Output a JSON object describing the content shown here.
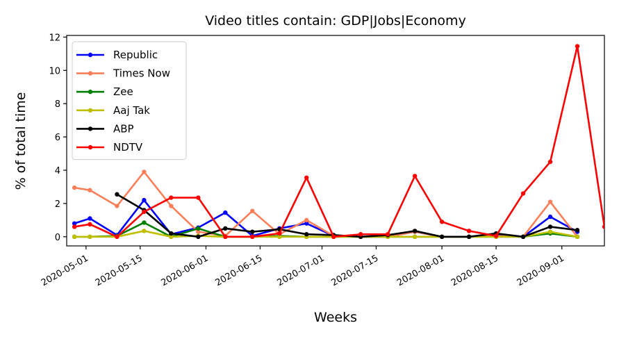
{
  "chart_data": {
    "type": "line",
    "title": "Video titles contain: GDP|Jobs|Economy",
    "xlabel": "Weeks",
    "ylabel": "% of total time",
    "x": [
      "2020-04-28",
      "2020-05-02",
      "2020-05-09",
      "2020-05-16",
      "2020-05-23",
      "2020-05-30",
      "2020-06-06",
      "2020-06-13",
      "2020-06-20",
      "2020-06-27",
      "2020-07-04",
      "2020-07-11",
      "2020-07-18",
      "2020-07-25",
      "2020-08-01",
      "2020-08-08",
      "2020-08-15",
      "2020-08-22",
      "2020-08-29",
      "2020-09-05",
      "2020-09-12"
    ],
    "xlim": [
      "2020-04-26",
      "2020-09-12"
    ],
    "ylim": [
      -0.55,
      12.1
    ],
    "yticks": [
      0,
      2,
      4,
      6,
      8,
      10,
      12
    ],
    "xticks": [
      "2020-05-01",
      "2020-05-15",
      "2020-06-01",
      "2020-06-15",
      "2020-07-01",
      "2020-07-15",
      "2020-08-01",
      "2020-08-15",
      "2020-09-01"
    ],
    "grid": false,
    "legend_position": "top-left",
    "series": [
      {
        "name": "Republic",
        "color": "#0000ff",
        "values": [
          0.8,
          1.1,
          0.1,
          2.2,
          0.15,
          0.55,
          1.45,
          0.05,
          0.5,
          0.8,
          0.05,
          0.0,
          0.0,
          0.3,
          0.0,
          0.0,
          0.1,
          0.0,
          1.2,
          0.3,
          null
        ]
      },
      {
        "name": "Times Now",
        "color": "#fa7f58",
        "values": [
          2.95,
          2.8,
          1.85,
          3.9,
          1.85,
          0.3,
          0.05,
          1.55,
          0.15,
          1.0,
          0.05,
          0.0,
          0.0,
          0.3,
          0.0,
          0.0,
          0.05,
          0.0,
          2.1,
          0.0,
          null
        ]
      },
      {
        "name": "Zee",
        "color": "#008000",
        "values": [
          0.0,
          0.0,
          0.05,
          0.85,
          0.0,
          0.5,
          0.0,
          0.0,
          0.05,
          0.0,
          0.0,
          0.0,
          0.0,
          0.0,
          0.0,
          0.0,
          0.0,
          0.0,
          0.2,
          0.0,
          null
        ]
      },
      {
        "name": "Aaj Tak",
        "color": "#bfbf00",
        "values": [
          0.0,
          0.0,
          0.0,
          0.35,
          0.0,
          0.05,
          0.0,
          0.0,
          0.0,
          0.0,
          0.0,
          0.0,
          0.0,
          0.0,
          0.0,
          0.0,
          0.0,
          0.0,
          0.3,
          0.0,
          null
        ]
      },
      {
        "name": "ABP",
        "color": "#000000",
        "values": [
          null,
          null,
          2.55,
          1.6,
          0.2,
          0.0,
          0.5,
          0.3,
          0.45,
          0.15,
          0.1,
          0.0,
          0.1,
          0.35,
          0.0,
          0.0,
          0.2,
          0.0,
          0.6,
          0.4,
          null
        ]
      },
      {
        "name": "NDTV",
        "color": "#ff0000",
        "values": [
          0.6,
          0.75,
          0.0,
          1.5,
          2.35,
          2.35,
          0.0,
          0.0,
          0.2,
          3.55,
          0.0,
          0.15,
          0.15,
          3.65,
          0.9,
          0.35,
          0.05,
          2.6,
          4.5,
          11.45,
          0.6
        ]
      }
    ]
  }
}
